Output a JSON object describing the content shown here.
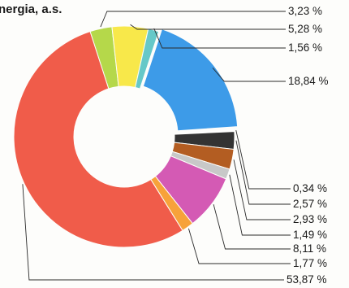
{
  "chart_data": {
    "type": "pie",
    "variant": "donut",
    "title": "nergia, a.s.",
    "slice_labels": [
      "3,23 %",
      "5,28 %",
      "1,56 %",
      "18,84 %",
      "0,34 %",
      "2,57 %",
      "2,93 %",
      "1,49 %",
      "8,11 %",
      "1,77 %",
      "53,87 %"
    ],
    "values": [
      3.23,
      5.28,
      1.56,
      18.84,
      0.34,
      2.57,
      2.93,
      1.49,
      8.11,
      1.77,
      53.87
    ],
    "colors": [
      "#b5d84a",
      "#f8e84a",
      "#66c8c8",
      "#3d9be8",
      "#ffffff",
      "#333333",
      "#b35d22",
      "#c8c8c8",
      "#d45ab4",
      "#f7a23a",
      "#f05c4a"
    ],
    "legend": "none",
    "grid": false
  }
}
